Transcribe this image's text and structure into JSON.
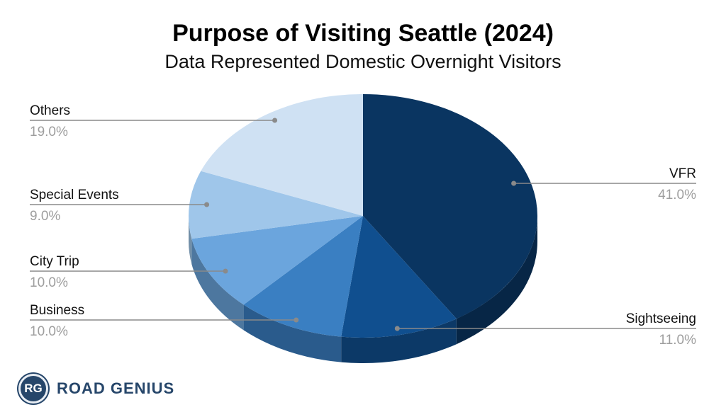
{
  "chart_data": {
    "type": "pie",
    "title": "Purpose of Visiting Seattle (2024)",
    "subtitle": "Data Represented Domestic Overnight Visitors",
    "slices": [
      {
        "label": "VFR",
        "value": 41.0,
        "display": "41.0%",
        "color": "#0a3561"
      },
      {
        "label": "Sightseeing",
        "value": 11.0,
        "display": "11.0%",
        "color": "#104f8f"
      },
      {
        "label": "Business",
        "value": 10.0,
        "display": "10.0%",
        "color": "#3a7fc2"
      },
      {
        "label": "City Trip",
        "value": 10.0,
        "display": "10.0%",
        "color": "#6ba5dd"
      },
      {
        "label": "Special Events",
        "value": 9.0,
        "display": "9.0%",
        "color": "#9fc6ea"
      },
      {
        "label": "Others",
        "value": 19.0,
        "display": "19.0%",
        "color": "#cfe1f3"
      }
    ],
    "legend": "none"
  },
  "brand": {
    "badge": "RG",
    "name": "ROAD GENIUS"
  }
}
